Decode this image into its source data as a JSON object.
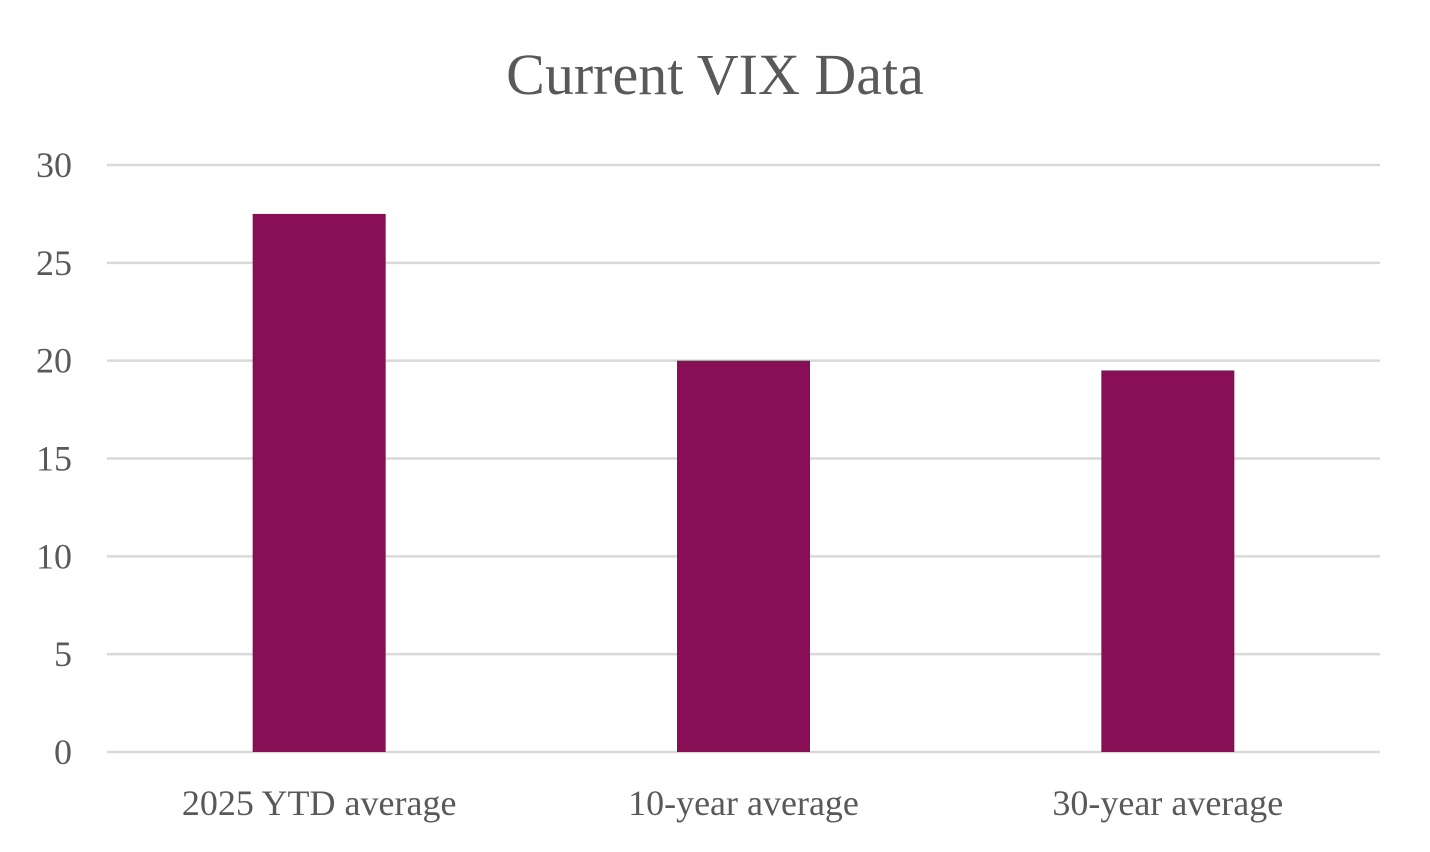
{
  "chart_data": {
    "type": "bar",
    "title": "Current VIX Data",
    "xlabel": "",
    "ylabel": "",
    "categories": [
      "2025 YTD average",
      "10-year average",
      "30-year average"
    ],
    "values": [
      27.5,
      20,
      19.5
    ],
    "ylim": [
      0,
      30
    ],
    "yticks": [
      "0",
      "5",
      "10",
      "15",
      "20",
      "25",
      "30"
    ],
    "grid": true,
    "legend": "none",
    "colors": {
      "bar": "#880E56",
      "text": "#595959",
      "grid": "#D9D9D9"
    }
  }
}
